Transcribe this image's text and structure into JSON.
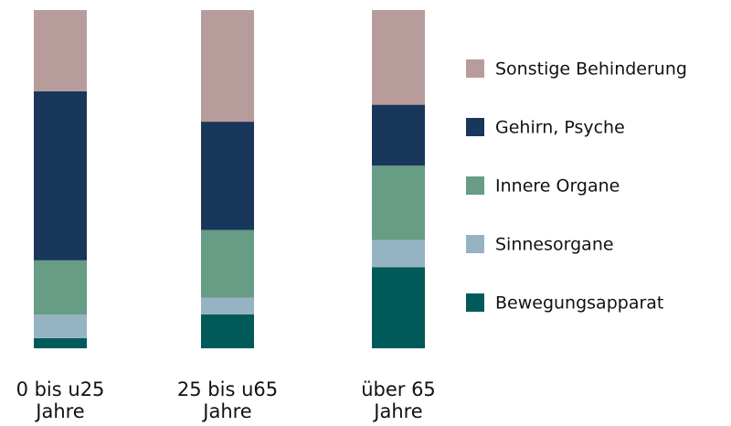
{
  "chart_data": {
    "type": "stacked-bar",
    "categories": [
      "0 bis u25 Jahre",
      "25 bis u65 Jahre",
      "über 65 Jahre"
    ],
    "series": [
      {
        "name": "Bewegungsapparat",
        "color": "#005a5a",
        "values": [
          3,
          10,
          24
        ]
      },
      {
        "name": "Sinnesorgane",
        "color": "#96b3c4",
        "values": [
          7,
          5,
          8
        ]
      },
      {
        "name": "Innere Organe",
        "color": "#679c85",
        "values": [
          16,
          20,
          22
        ]
      },
      {
        "name": "Gehirn, Psyche",
        "color": "#18375a",
        "values": [
          50,
          32,
          18
        ]
      },
      {
        "name": "Sonstige Behinderung",
        "color": "#b89c9c",
        "values": [
          24,
          33,
          28
        ]
      }
    ],
    "ylim": [
      0,
      100
    ],
    "legend": "right"
  }
}
